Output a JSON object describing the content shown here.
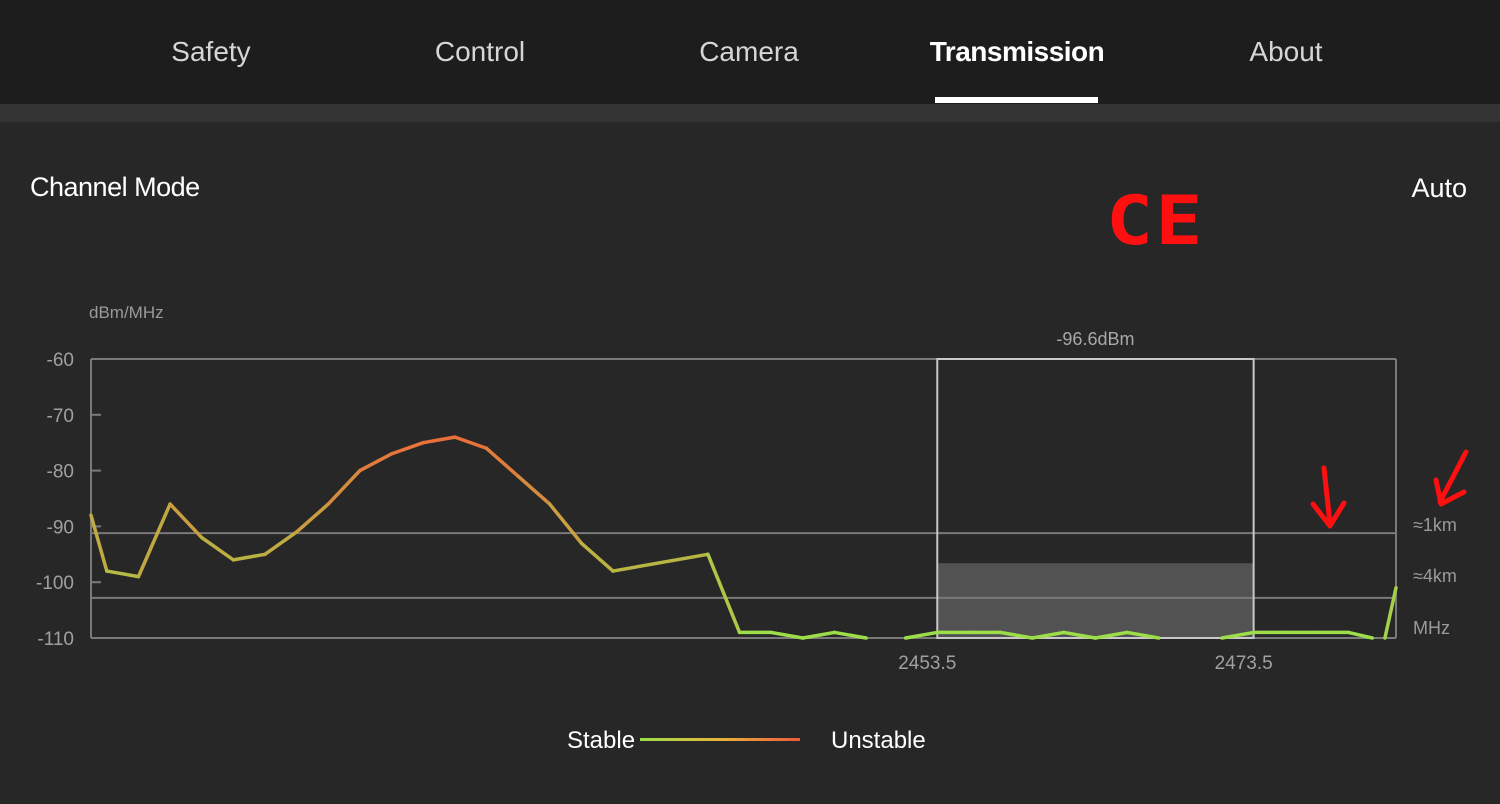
{
  "nav": {
    "tabs": [
      {
        "label": "Safety",
        "active": false
      },
      {
        "label": "Control",
        "active": false
      },
      {
        "label": "Camera",
        "active": false
      },
      {
        "label": "Transmission",
        "active": true
      },
      {
        "label": "About",
        "active": false
      }
    ]
  },
  "channel_mode": {
    "label": "Channel Mode",
    "value": "Auto"
  },
  "annotation": {
    "text": "CE",
    "color": "#ff1010",
    "arrows": [
      "arrow-down-icon",
      "arrow-down-left-icon"
    ]
  },
  "legend": {
    "stable": "Stable",
    "unstable": "Unstable",
    "stable_color": "#9be04a",
    "unstable_color": "#ee5a3a"
  },
  "chart_data": {
    "type": "line",
    "ylabel": "dBm/MHz",
    "xunit": "MHz",
    "ylim": [
      -110,
      -60
    ],
    "xlim": [
      2400,
      2482.5
    ],
    "yticks": [
      "-60",
      "-70",
      "-80",
      "-90",
      "-100",
      "-110"
    ],
    "xticks": [
      {
        "value": 2453.5,
        "label": "2453.5"
      },
      {
        "value": 2473.5,
        "label": "2473.5"
      }
    ],
    "reference_lines": [
      {
        "value": -91.2,
        "label": "≈1km"
      },
      {
        "value": -102.8,
        "label": "≈4km"
      }
    ],
    "selected_band": {
      "from": 2453.5,
      "to": 2473.5,
      "level": -96.6,
      "label": "-96.6dBm"
    },
    "x": [
      2400,
      2401,
      2403,
      2405,
      2407,
      2409,
      2411,
      2413,
      2415,
      2417,
      2419,
      2421,
      2423,
      2425,
      2427,
      2429,
      2431,
      2433,
      2439,
      2441,
      2443,
      2445,
      2447,
      2449,
      2451.5,
      2453.5,
      2455.5,
      2457.5,
      2459.5,
      2461.5,
      2463.5,
      2465.5,
      2467.5,
      2469.5,
      2471.5,
      2473.5,
      2475.5,
      2477.5,
      2479.5,
      2481,
      2481.8,
      2482.5
    ],
    "y": [
      -88,
      -98,
      -99,
      -86,
      -92,
      -96,
      -95,
      -91,
      -86,
      -80,
      -77,
      -75,
      -74,
      -76,
      -81,
      -86,
      -93,
      -98,
      -95,
      -109,
      -109,
      -110,
      -109,
      -110,
      -110,
      -109,
      -109,
      -109,
      -110,
      -109,
      -110,
      -109,
      -110,
      -110,
      -110,
      -109,
      -109,
      -109,
      -109,
      -110,
      -110,
      -101
    ]
  }
}
